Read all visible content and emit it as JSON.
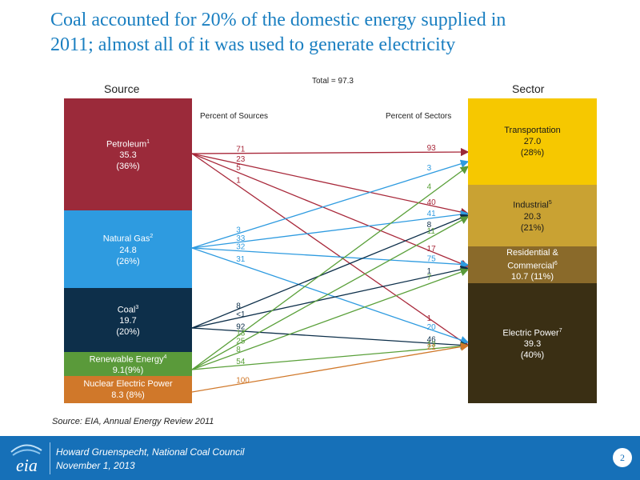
{
  "title": {
    "line1": "Coal accounted for 20% of the domestic energy supplied in",
    "line2": "2011;  almost all of it was used to generate electricity"
  },
  "diagram": {
    "source_header": "Source",
    "sector_header": "Sector",
    "total_label": "Total = 97.3",
    "pct_sources_label": "Percent of Sources",
    "pct_sectors_label": "Percent of Sectors",
    "sources": [
      {
        "name": "Petroleum",
        "sup": "1",
        "value": "35.3",
        "pct": "(36%)",
        "color": "#9b2a3a"
      },
      {
        "name": "Natural Gas",
        "sup": "2",
        "value": "24.8",
        "pct": "(26%)",
        "color": "#2e9be0"
      },
      {
        "name": "Coal",
        "sup": "3",
        "value": "19.7",
        "pct": "(20%)",
        "color": "#0d2f4a"
      },
      {
        "name": "Renewable Energy",
        "sup": "4",
        "value": "9.1(9%)",
        "pct": "",
        "color": "#5a9a3a"
      },
      {
        "name": "Nuclear Electric Power",
        "sup": "",
        "value": "8.3 (8%)",
        "pct": "",
        "color": "#d0782a"
      }
    ],
    "sectors": [
      {
        "name": "Transportation",
        "sup": "",
        "value": "27.0",
        "pct": "(28%)",
        "color": "#f6c800"
      },
      {
        "name": "Industrial",
        "sup": "5",
        "value": "20.3",
        "pct": "(21%)",
        "color": "#c9a233"
      },
      {
        "name": "Residential &",
        "name2": "Commercial",
        "sup": "6",
        "value": "10.7 (11%)",
        "pct": "",
        "color": "#8a6a2a"
      },
      {
        "name": "Electric Power",
        "sup": "7",
        "value": "39.3",
        "pct": "(40%)",
        "color": "#3a2f14"
      }
    ],
    "flows": [
      {
        "from": 0,
        "to": 0,
        "src_pct": "71",
        "sec_pct": "93"
      },
      {
        "from": 0,
        "to": 1,
        "src_pct": "23",
        "sec_pct": "40"
      },
      {
        "from": 0,
        "to": 2,
        "src_pct": "5",
        "sec_pct": "17"
      },
      {
        "from": 0,
        "to": 3,
        "src_pct": "1",
        "sec_pct": "1"
      },
      {
        "from": 1,
        "to": 0,
        "src_pct": "3",
        "sec_pct": "3"
      },
      {
        "from": 1,
        "to": 1,
        "src_pct": "33",
        "sec_pct": "41"
      },
      {
        "from": 1,
        "to": 2,
        "src_pct": "32",
        "sec_pct": "75"
      },
      {
        "from": 1,
        "to": 3,
        "src_pct": "31",
        "sec_pct": "20"
      },
      {
        "from": 2,
        "to": 1,
        "src_pct": "8",
        "sec_pct": "8"
      },
      {
        "from": 2,
        "to": 2,
        "src_pct": "<1",
        "sec_pct": "1"
      },
      {
        "from": 2,
        "to": 3,
        "src_pct": "92",
        "sec_pct": "46"
      },
      {
        "from": 3,
        "to": 0,
        "src_pct": "13",
        "sec_pct": "4"
      },
      {
        "from": 3,
        "to": 1,
        "src_pct": "25",
        "sec_pct": "11"
      },
      {
        "from": 3,
        "to": 2,
        "src_pct": "8",
        "sec_pct": "7"
      },
      {
        "from": 3,
        "to": 3,
        "src_pct": "54",
        "sec_pct": "13"
      },
      {
        "from": 4,
        "to": 3,
        "src_pct": "100",
        "sec_pct": "21"
      }
    ]
  },
  "source_note": "Source:  EIA, Annual Energy Review 2011",
  "footer": {
    "logo": "eia",
    "line1": "Howard Gruenspecht, National Coal Council",
    "line2": "November 1, 2013",
    "page": "2"
  }
}
